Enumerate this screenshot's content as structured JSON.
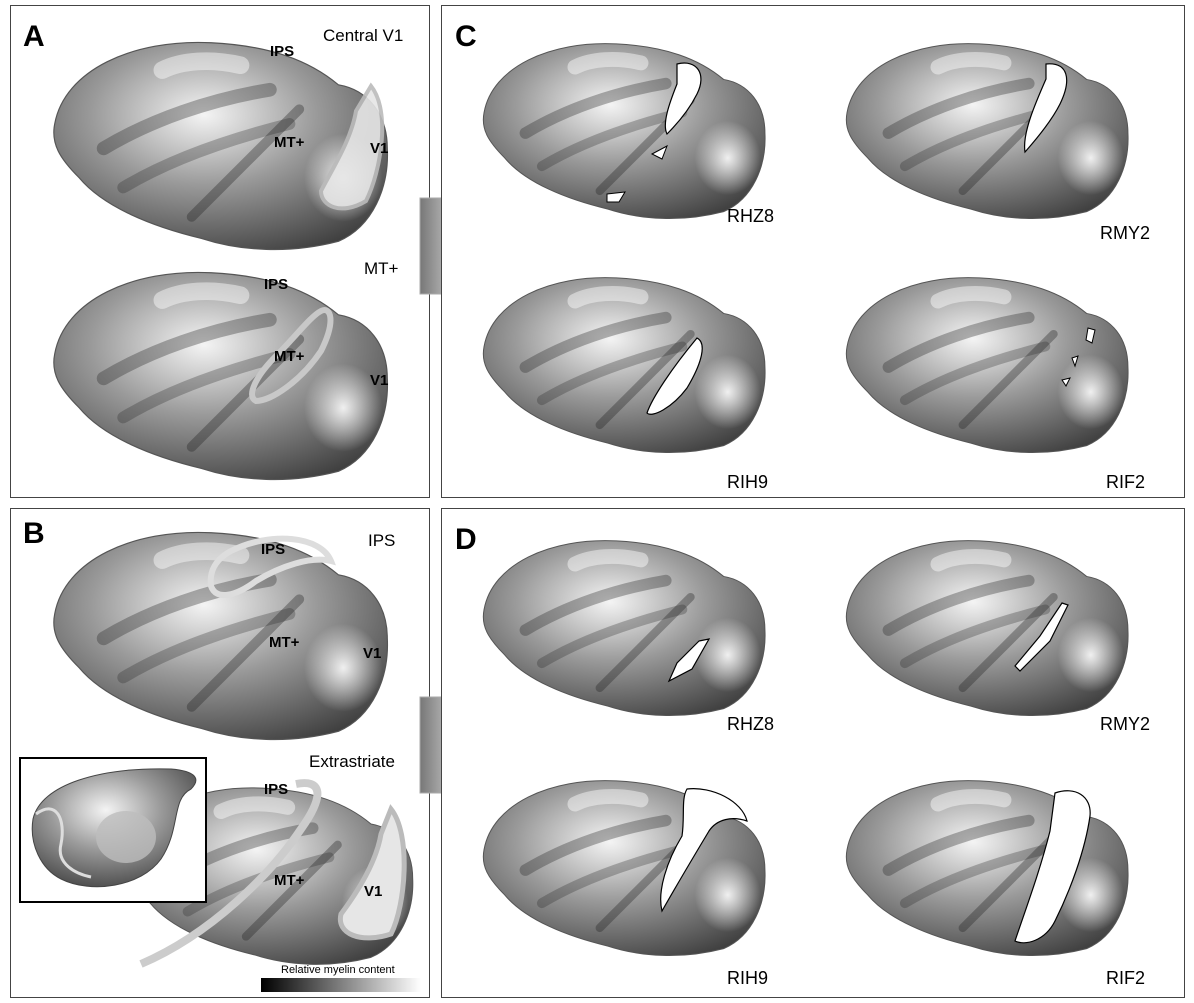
{
  "panels": {
    "a": {
      "letter": "A",
      "roi_top": "Central V1",
      "roi_bottom": "MT+"
    },
    "b": {
      "letter": "B",
      "roi_top": "IPS",
      "roi_bottom": "Extrastriate"
    },
    "c": {
      "letter": "C"
    },
    "d": {
      "letter": "D"
    }
  },
  "labels": {
    "ips": "IPS",
    "mt": "MT+",
    "v1": "V1"
  },
  "subjects": [
    "RHZ8",
    "RMY2",
    "RIH9",
    "RIF2"
  ],
  "scale_bar": {
    "label": "Relative myelin content"
  }
}
